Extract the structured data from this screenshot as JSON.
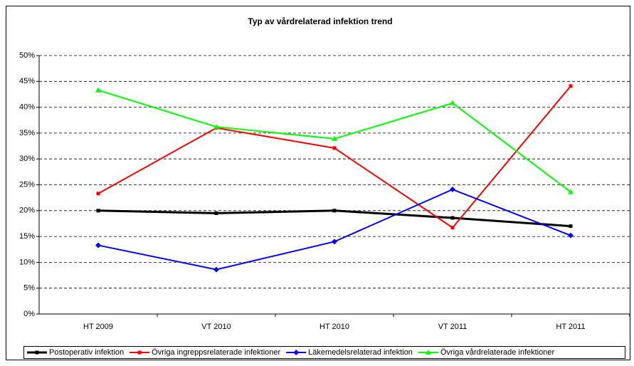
{
  "chart_data": {
    "type": "line",
    "title": "Typ av vårdrelaterad infektion trend",
    "categories": [
      "HT 2009",
      "VT 2010",
      "HT 2010",
      "VT 2011",
      "HT 2011"
    ],
    "series": [
      {
        "name": "Postoperativ infektion",
        "color": "#000000",
        "marker": "square",
        "values": [
          20.0,
          19.5,
          20.0,
          18.6,
          17.0
        ]
      },
      {
        "name": "Övriga ingreppsrelaterade infektioner",
        "color": "#ff0000",
        "marker": "square",
        "values": [
          23.3,
          36.0,
          32.1,
          16.7,
          44.1
        ]
      },
      {
        "name": "Läkemedelsrelaterad infektion",
        "color": "#0000ff",
        "marker": "diamond",
        "values": [
          13.3,
          8.6,
          14.0,
          24.1,
          15.2
        ]
      },
      {
        "name": "Övriga vårdrelaterade infektioner",
        "color": "#00ff00",
        "marker": "triangle",
        "values": [
          43.3,
          36.2,
          33.9,
          40.8,
          23.6
        ]
      }
    ],
    "ylim": [
      0,
      50
    ],
    "yticks": [
      {
        "value": 0,
        "label": "0%"
      },
      {
        "value": 5,
        "label": "5%"
      },
      {
        "value": 10,
        "label": "10%"
      },
      {
        "value": 15,
        "label": "15%"
      },
      {
        "value": 20,
        "label": "20%"
      },
      {
        "value": 25,
        "label": "25%"
      },
      {
        "value": 30,
        "label": "30%"
      },
      {
        "value": 35,
        "label": "35%"
      },
      {
        "value": 40,
        "label": "40%"
      },
      {
        "value": 45,
        "label": "45%"
      },
      {
        "value": 50,
        "label": "50%"
      }
    ],
    "grid": true,
    "legend": "bottom"
  }
}
